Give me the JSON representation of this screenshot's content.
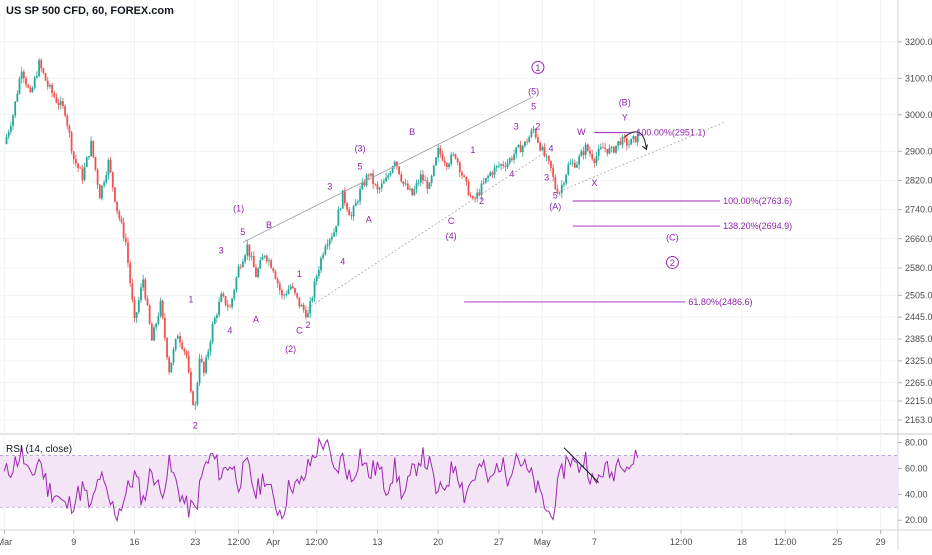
{
  "chart_data": [
    {
      "type": "line",
      "title": "US SP 500 CFD, 60, FOREX.com",
      "series_style": "candlestick",
      "colors": {
        "up": "#26a69a",
        "down": "#ef5350",
        "annotation": "#9c27b0"
      },
      "ylim": [
        2130,
        3260
      ],
      "yticks": [
        3200.0,
        3100.0,
        3000.0,
        2900.0,
        2820.0,
        2740.0,
        2660.0,
        2580.0,
        2505.0,
        2445.0,
        2385.0,
        2325.0,
        2265.0,
        2215.0,
        2163.0
      ],
      "y_tick_labels": [
        "3200.0",
        "3100.0",
        "3000.0",
        "2900.0",
        "2820.0",
        "2740.0",
        "2660.0",
        "2580.0",
        "2505.0",
        "2445.0",
        "2385.0",
        "2325.0",
        "2265.0",
        "2215.0",
        "2163.0"
      ],
      "xticks": [
        {
          "label": "Mar",
          "t": 0
        },
        {
          "label": "9",
          "t": 8
        },
        {
          "label": "16",
          "t": 15
        },
        {
          "label": "23",
          "t": 22
        },
        {
          "label": "12:00",
          "t": 27
        },
        {
          "label": "Apr",
          "t": 31
        },
        {
          "label": "12:00",
          "t": 36
        },
        {
          "label": "13",
          "t": 43
        },
        {
          "label": "20",
          "t": 50
        },
        {
          "label": "27",
          "t": 57
        },
        {
          "label": "May",
          "t": 62
        },
        {
          "label": "7",
          "t": 68
        },
        {
          "label": "12:00",
          "t": 78
        },
        {
          "label": "18",
          "t": 85
        },
        {
          "label": "12:00",
          "t": 90
        },
        {
          "label": "25",
          "t": 96
        },
        {
          "label": "29",
          "t": 101
        }
      ],
      "price_path": [
        [
          0,
          2920
        ],
        [
          1,
          3000
        ],
        [
          2,
          3130
        ],
        [
          3,
          3050
        ],
        [
          4,
          3140
        ],
        [
          5,
          3080
        ],
        [
          6,
          3040
        ],
        [
          7,
          3010
        ],
        [
          8,
          2880
        ],
        [
          9,
          2830
        ],
        [
          10,
          2920
        ],
        [
          11,
          2780
        ],
        [
          12,
          2870
        ],
        [
          13,
          2740
        ],
        [
          14,
          2650
        ],
        [
          15,
          2430
        ],
        [
          16,
          2550
        ],
        [
          17,
          2380
        ],
        [
          18,
          2480
        ],
        [
          19,
          2300
        ],
        [
          20,
          2400
        ],
        [
          21,
          2340
        ],
        [
          21.5,
          2230
        ],
        [
          22,
          2200
        ],
        [
          22.5,
          2340
        ],
        [
          23,
          2290
        ],
        [
          24,
          2420
        ],
        [
          25,
          2500
        ],
        [
          26,
          2470
        ],
        [
          27,
          2580
        ],
        [
          28,
          2640
        ],
        [
          29,
          2560
        ],
        [
          30,
          2620
        ],
        [
          31,
          2580
        ],
        [
          32,
          2500
        ],
        [
          33,
          2530
        ],
        [
          34,
          2480
        ],
        [
          35,
          2450
        ],
        [
          36,
          2560
        ],
        [
          37,
          2650
        ],
        [
          38,
          2680
        ],
        [
          39,
          2780
        ],
        [
          40,
          2720
        ],
        [
          41,
          2790
        ],
        [
          42,
          2840
        ],
        [
          43,
          2790
        ],
        [
          44,
          2820
        ],
        [
          45,
          2880
        ],
        [
          46,
          2810
        ],
        [
          47,
          2780
        ],
        [
          48,
          2830
        ],
        [
          49,
          2800
        ],
        [
          50,
          2900
        ],
        [
          51,
          2870
        ],
        [
          52,
          2890
        ],
        [
          53,
          2820
        ],
        [
          54,
          2760
        ],
        [
          55,
          2800
        ],
        [
          56,
          2840
        ],
        [
          57,
          2860
        ],
        [
          58,
          2870
        ],
        [
          59,
          2900
        ],
        [
          60,
          2920
        ],
        [
          61,
          2960
        ],
        [
          62,
          2900
        ],
        [
          63,
          2850
        ],
        [
          63.5,
          2800
        ],
        [
          64,
          2790
        ],
        [
          65,
          2860
        ],
        [
          66,
          2870
        ],
        [
          67,
          2910
        ],
        [
          68,
          2880
        ],
        [
          69,
          2910
        ],
        [
          70,
          2900
        ],
        [
          71,
          2930
        ],
        [
          72,
          2920
        ],
        [
          73,
          2940
        ]
      ],
      "wave_labels": [
        {
          "text": "1",
          "t": 21.5,
          "y": 2485
        },
        {
          "text": "2",
          "t": 22,
          "y": 2140
        },
        {
          "text": "3",
          "t": 25,
          "y": 2620
        },
        {
          "text": "4",
          "t": 26,
          "y": 2400
        },
        {
          "text": "(1)",
          "t": 27,
          "y": 2735
        },
        {
          "text": "5",
          "t": 27.5,
          "y": 2670
        },
        {
          "text": "B",
          "t": 30.5,
          "y": 2690
        },
        {
          "text": "A",
          "t": 29,
          "y": 2430
        },
        {
          "text": "1",
          "t": 34,
          "y": 2555
        },
        {
          "text": "C",
          "t": 34,
          "y": 2400
        },
        {
          "text": "2",
          "t": 35,
          "y": 2415
        },
        {
          "text": "(2)",
          "t": 33,
          "y": 2350
        },
        {
          "text": "3",
          "t": 37.5,
          "y": 2795
        },
        {
          "text": "4",
          "t": 39,
          "y": 2590
        },
        {
          "text": "A",
          "t": 42,
          "y": 2705
        },
        {
          "text": "5",
          "t": 41,
          "y": 2850
        },
        {
          "text": "(3)",
          "t": 41,
          "y": 2900
        },
        {
          "text": "B",
          "t": 47,
          "y": 2945
        },
        {
          "text": "C",
          "t": 51.5,
          "y": 2700
        },
        {
          "text": "(4)",
          "t": 51.5,
          "y": 2660
        },
        {
          "text": "1",
          "t": 54,
          "y": 2895
        },
        {
          "text": "2",
          "t": 55,
          "y": 2755
        },
        {
          "text": "3",
          "t": 59,
          "y": 2960
        },
        {
          "text": "4",
          "t": 58.5,
          "y": 2830
        },
        {
          "text": "5",
          "t": 61,
          "y": 3015
        },
        {
          "text": "(5)",
          "t": 61,
          "y": 3055
        },
        {
          "text": "2",
          "t": 61.5,
          "y": 2960
        },
        {
          "text": "4",
          "t": 63,
          "y": 2900
        },
        {
          "text": "3",
          "t": 62.5,
          "y": 2820
        },
        {
          "text": "5",
          "t": 63.5,
          "y": 2770
        },
        {
          "text": "(A)",
          "t": 63.5,
          "y": 2740
        },
        {
          "text": "W",
          "t": 66.5,
          "y": 2945
        },
        {
          "text": "X",
          "t": 68,
          "y": 2805
        },
        {
          "text": "(B)",
          "t": 71.5,
          "y": 3025
        },
        {
          "text": "Y",
          "t": 71.5,
          "y": 2985
        },
        {
          "text": "(C)",
          "t": 77,
          "y": 2655
        }
      ],
      "circled_labels": [
        {
          "text": "1",
          "t": 61.5,
          "y": 3130
        },
        {
          "text": "2",
          "t": 77,
          "y": 2595
        }
      ],
      "trendlines": [
        {
          "style": "solid",
          "from": [
            27.5,
            2650
          ],
          "to": [
            61,
            3050
          ]
        },
        {
          "style": "dotted",
          "from": [
            35,
            2470
          ],
          "to": [
            62.5,
            2900
          ]
        },
        {
          "style": "dotted",
          "from": [
            64,
            2790
          ],
          "to": [
            83,
            2980
          ]
        }
      ],
      "fib_levels": [
        {
          "label": "100.00%(2951.1)",
          "value": 2951.1,
          "t_from": 68,
          "t_to": 72.5
        },
        {
          "label": "100.00%(2763.6)",
          "value": 2763.6,
          "t_from": 65.5,
          "t_to": 82.5
        },
        {
          "label": "138.20%(2694.9)",
          "value": 2694.9,
          "t_from": 65.5,
          "t_to": 82.5
        },
        {
          "label": "61.80%(2486.6)",
          "value": 2486.6,
          "t_from": 53,
          "t_to": 78.5
        }
      ],
      "projection_arrow": {
        "from": [
          71.5,
          2940
        ],
        "to": [
          74,
          2905
        ]
      }
    },
    {
      "type": "line",
      "title": "RSI (14, close)",
      "ylim": [
        14,
        85
      ],
      "yticks": [
        80.0,
        60.0,
        40.0,
        20.0
      ],
      "y_tick_labels": [
        "80.00",
        "60.00",
        "40.00",
        "20.00"
      ],
      "band": [
        30,
        70
      ],
      "colors": {
        "line": "#9c27b0",
        "band_fill": "#f3e5f5",
        "band_line": "#b39ddb"
      },
      "values": [
        [
          0,
          55
        ],
        [
          1,
          62
        ],
        [
          2,
          72
        ],
        [
          3,
          50
        ],
        [
          4,
          68
        ],
        [
          5,
          45
        ],
        [
          6,
          40
        ],
        [
          7,
          30
        ],
        [
          8,
          35
        ],
        [
          9,
          45
        ],
        [
          10,
          28
        ],
        [
          11,
          55
        ],
        [
          12,
          35
        ],
        [
          13,
          25
        ],
        [
          14,
          40
        ],
        [
          15,
          55
        ],
        [
          16,
          35
        ],
        [
          17,
          60
        ],
        [
          18,
          40
        ],
        [
          19,
          62
        ],
        [
          20,
          45
        ],
        [
          21,
          30
        ],
        [
          22,
          28
        ],
        [
          23,
          60
        ],
        [
          24,
          70
        ],
        [
          25,
          55
        ],
        [
          26,
          65
        ],
        [
          27,
          50
        ],
        [
          28,
          62
        ],
        [
          29,
          40
        ],
        [
          30,
          55
        ],
        [
          31,
          35
        ],
        [
          32,
          25
        ],
        [
          33,
          50
        ],
        [
          34,
          45
        ],
        [
          35,
          60
        ],
        [
          36,
          75
        ],
        [
          37,
          82
        ],
        [
          38,
          55
        ],
        [
          39,
          68
        ],
        [
          40,
          50
        ],
        [
          41,
          72
        ],
        [
          42,
          55
        ],
        [
          43,
          62
        ],
        [
          44,
          45
        ],
        [
          45,
          60
        ],
        [
          46,
          38
        ],
        [
          47,
          55
        ],
        [
          48,
          70
        ],
        [
          49,
          62
        ],
        [
          50,
          38
        ],
        [
          51,
          50
        ],
        [
          52,
          65
        ],
        [
          53,
          40
        ],
        [
          54,
          52
        ],
        [
          55,
          62
        ],
        [
          56,
          48
        ],
        [
          57,
          65
        ],
        [
          58,
          55
        ],
        [
          59,
          72
        ],
        [
          60,
          60
        ],
        [
          61,
          50
        ],
        [
          62,
          35
        ],
        [
          63,
          22
        ],
        [
          64,
          50
        ],
        [
          65,
          70
        ],
        [
          66,
          60
        ],
        [
          67,
          68
        ],
        [
          68,
          45
        ],
        [
          69,
          60
        ],
        [
          70,
          55
        ],
        [
          71,
          70
        ],
        [
          72,
          62
        ],
        [
          73,
          68
        ]
      ],
      "divergence_line": {
        "from": [
          64.5,
          76
        ],
        "to": [
          68.5,
          49
        ]
      }
    }
  ]
}
